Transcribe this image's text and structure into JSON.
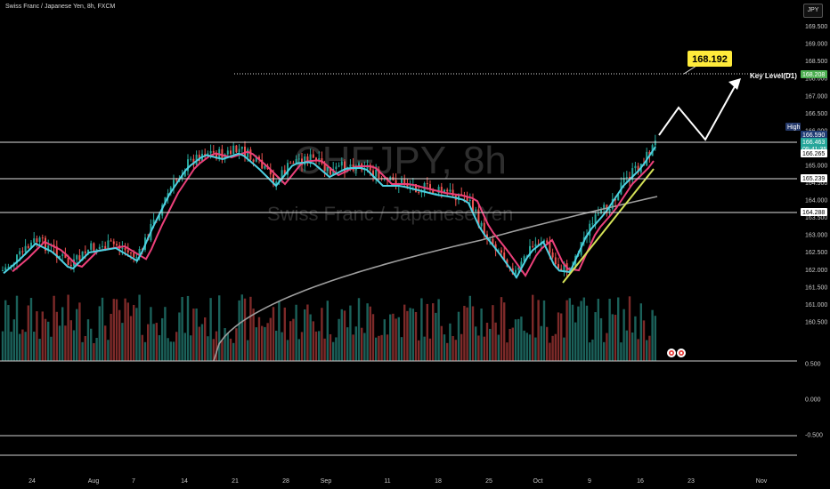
{
  "header": {
    "symbol_title": "Swiss Franc / Japanese Yen, 8h, FXCM",
    "currency_button": "JPY"
  },
  "watermark": {
    "symbol": "CHFJPY, 8h",
    "name": "Swiss Franc / Japanese Yen"
  },
  "annotation": {
    "target_price": "168.192",
    "key_level_label": "Key Level(D1)"
  },
  "price_axis": {
    "ticks": [
      "169.500",
      "169.000",
      "168.500",
      "168.000",
      "167.000",
      "166.500",
      "166.000",
      "165.500",
      "165.000",
      "164.500",
      "164.000",
      "163.500",
      "163.000",
      "162.500",
      "162.000",
      "161.500",
      "161.000",
      "160.500"
    ],
    "labels": [
      {
        "text": "168.208",
        "kind": "key",
        "color": "#4caf50"
      },
      {
        "text": "High",
        "kind": "tag",
        "color": "#263a6b"
      },
      {
        "text": "166.590",
        "kind": "high",
        "color": "#1f3b73"
      },
      {
        "text": "166.463",
        "kind": "price",
        "color": "#26a69a"
      },
      {
        "text": "05:41:35",
        "kind": "timer",
        "color": "#26a69a"
      },
      {
        "text": "166.265",
        "kind": "level",
        "color": "#ffffff"
      },
      {
        "text": "165.239",
        "kind": "level",
        "color": "#ffffff"
      },
      {
        "text": "164.288",
        "kind": "level",
        "color": "#ffffff"
      }
    ]
  },
  "osc_axis": {
    "ticks": [
      "0.500",
      "0.000",
      "-0.500"
    ]
  },
  "time_axis": {
    "ticks": [
      "24",
      "Aug",
      "7",
      "14",
      "21",
      "28",
      "Sep",
      "11",
      "18",
      "25",
      "Oct",
      "9",
      "16",
      "23",
      "Nov"
    ]
  },
  "colors": {
    "bull": "#26a69a",
    "bear": "#ef5350",
    "ema_fast": "#4dd0e1",
    "ema_slow": "#ec407a",
    "sma": "#9e9e9e",
    "trend": "#d4e157"
  },
  "icons": [
    "indicator-badge-icon",
    "indicator-badge-icon"
  ]
}
